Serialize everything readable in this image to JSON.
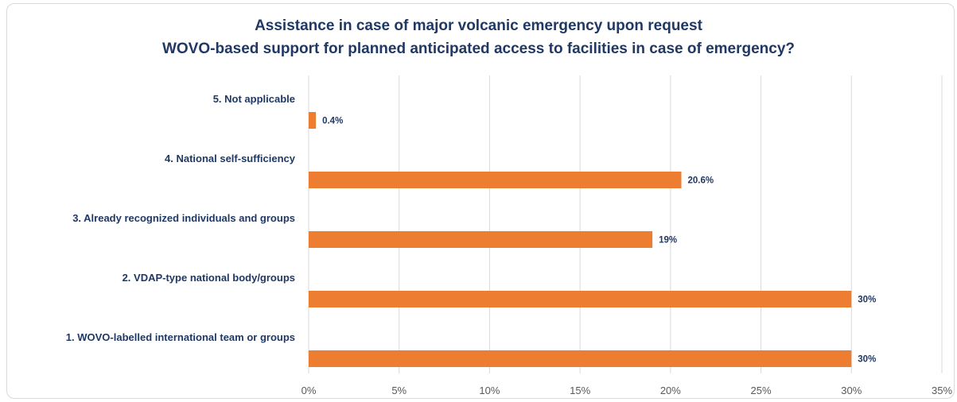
{
  "chart_data": {
    "type": "bar",
    "orientation": "horizontal",
    "title_line1": "Assistance in case of major volcanic emergency upon request",
    "title_line2": "WOVO-based support for planned anticipated access to facilities in case of emergency?",
    "categories": [
      "5. Not applicable",
      "4. National self-sufficiency",
      "3. Already recognized individuals and groups",
      "2. VDAP-type national body/groups",
      "1. WOVO-labelled international team or groups"
    ],
    "values": [
      0.4,
      20.6,
      19,
      30,
      30
    ],
    "data_labels": [
      "0.4%",
      "20.6%",
      "19%",
      "30%",
      "30%"
    ],
    "xlim": [
      0,
      35
    ],
    "xticks": [
      0,
      5,
      10,
      15,
      20,
      25,
      30,
      35
    ],
    "xtick_labels": [
      "0%",
      "5%",
      "10%",
      "15%",
      "20%",
      "25%",
      "30%",
      "35%"
    ],
    "grid": true,
    "legend": "none",
    "bar_color": "#ed7d31",
    "title_color": "#1f3864"
  }
}
